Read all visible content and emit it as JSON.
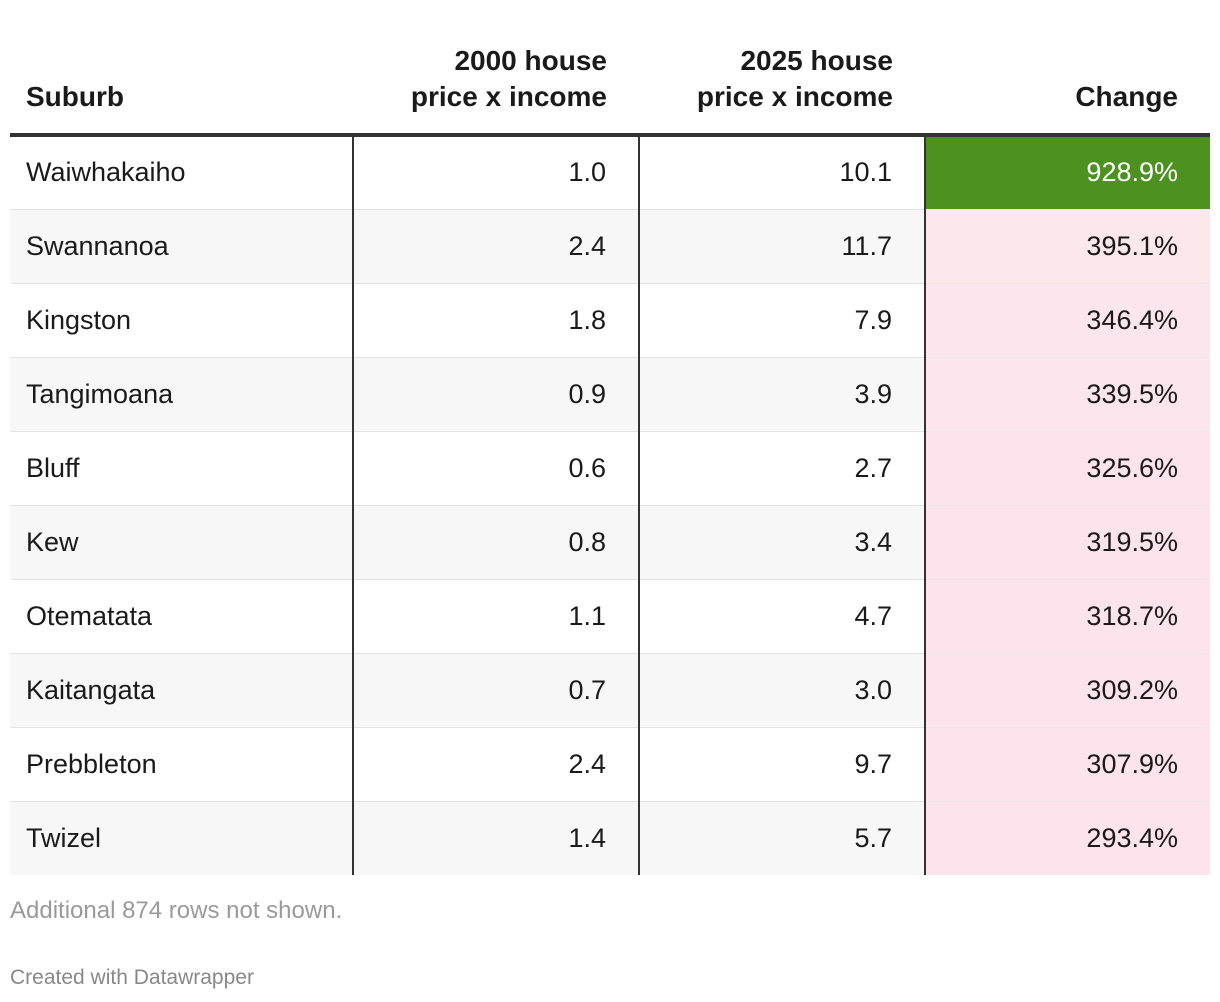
{
  "chart_data": {
    "type": "table",
    "columns": [
      "Suburb",
      "2000 house\nprice x income",
      "2025 house\nprice x income",
      "Change"
    ],
    "rows": [
      {
        "suburb": "Waiwhakaiho",
        "y2000": "1.0",
        "y2025": "10.1",
        "change": "928.9%",
        "change_value": 928.9
      },
      {
        "suburb": "Swannanoa",
        "y2000": "2.4",
        "y2025": "11.7",
        "change": "395.1%",
        "change_value": 395.1
      },
      {
        "suburb": "Kingston",
        "y2000": "1.8",
        "y2025": "7.9",
        "change": "346.4%",
        "change_value": 346.4
      },
      {
        "suburb": "Tangimoana",
        "y2000": "0.9",
        "y2025": "3.9",
        "change": "339.5%",
        "change_value": 339.5
      },
      {
        "suburb": "Bluff",
        "y2000": "0.6",
        "y2025": "2.7",
        "change": "325.6%",
        "change_value": 325.6
      },
      {
        "suburb": "Kew",
        "y2000": "0.8",
        "y2025": "3.4",
        "change": "319.5%",
        "change_value": 319.5
      },
      {
        "suburb": "Otematata",
        "y2000": "1.1",
        "y2025": "4.7",
        "change": "318.7%",
        "change_value": 318.7
      },
      {
        "suburb": "Kaitangata",
        "y2000": "0.7",
        "y2025": "3.0",
        "change": "309.2%",
        "change_value": 309.2
      },
      {
        "suburb": "Prebbleton",
        "y2000": "2.4",
        "y2025": "9.7",
        "change": "307.9%",
        "change_value": 307.9
      },
      {
        "suburb": "Twizel",
        "y2000": "1.4",
        "y2025": "5.7",
        "change": "293.4%",
        "change_value": 293.4
      }
    ],
    "color_scale": {
      "low": "#fde3ec",
      "high": "#4d9221",
      "mid": "#f9f1ec"
    }
  },
  "footer": {
    "note": "Additional 874 rows not shown.",
    "credit": "Created with Datawrapper"
  }
}
